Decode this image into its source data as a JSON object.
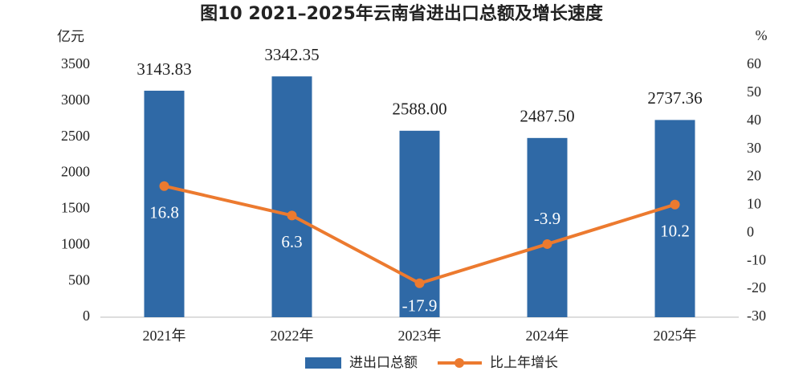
{
  "chart_data": {
    "type": "bar",
    "title": "图10  2021–2025年云南省进出口总额及增长速度",
    "y_label": "亿元",
    "y2_label": "%",
    "categories": [
      "2021年",
      "2022年",
      "2023年",
      "2024年",
      "2025年"
    ],
    "series": [
      {
        "name": "进出口总额",
        "type": "bar",
        "color": "#2f69a6",
        "values": [
          3143.83,
          3342.35,
          2588,
          2487.5,
          2737.36
        ],
        "value_labels": [
          "3143.83",
          "3342.35",
          "2588.00",
          "2487.50",
          "2737.36"
        ]
      },
      {
        "name": "比上年增长",
        "type": "line",
        "axis": "y2",
        "color": "#ec7a2f",
        "values": [
          16.8,
          6.3,
          -17.9,
          -3.9,
          10.2
        ]
      }
    ],
    "ylim": [
      0,
      3500
    ],
    "yticks": [
      0,
      500,
      1000,
      1500,
      2000,
      2500,
      3000,
      3500
    ],
    "y2lim": [
      -30,
      60
    ],
    "y2ticks": [
      -30,
      -20,
      -10,
      0,
      10,
      20,
      30,
      40,
      50,
      60
    ],
    "grid": false,
    "legend": "bottom"
  }
}
